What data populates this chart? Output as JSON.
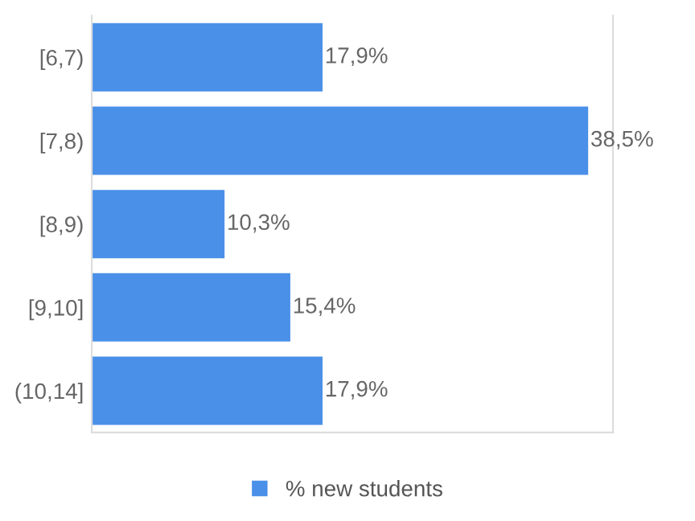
{
  "chart_data": {
    "type": "bar",
    "orientation": "horizontal",
    "categories": [
      "[6,7)",
      "[7,8)",
      "[8,9)",
      "[9,10]",
      "(10,14]"
    ],
    "series": [
      {
        "name": "% new students",
        "color": "#4a90e8",
        "values": [
          17.9,
          38.5,
          10.3,
          15.4,
          17.9
        ],
        "value_labels": [
          "17,9%",
          "38,5%",
          "10,3%",
          "15,4%",
          "17,9%"
        ]
      }
    ],
    "legend": "bottom",
    "grid": false
  }
}
